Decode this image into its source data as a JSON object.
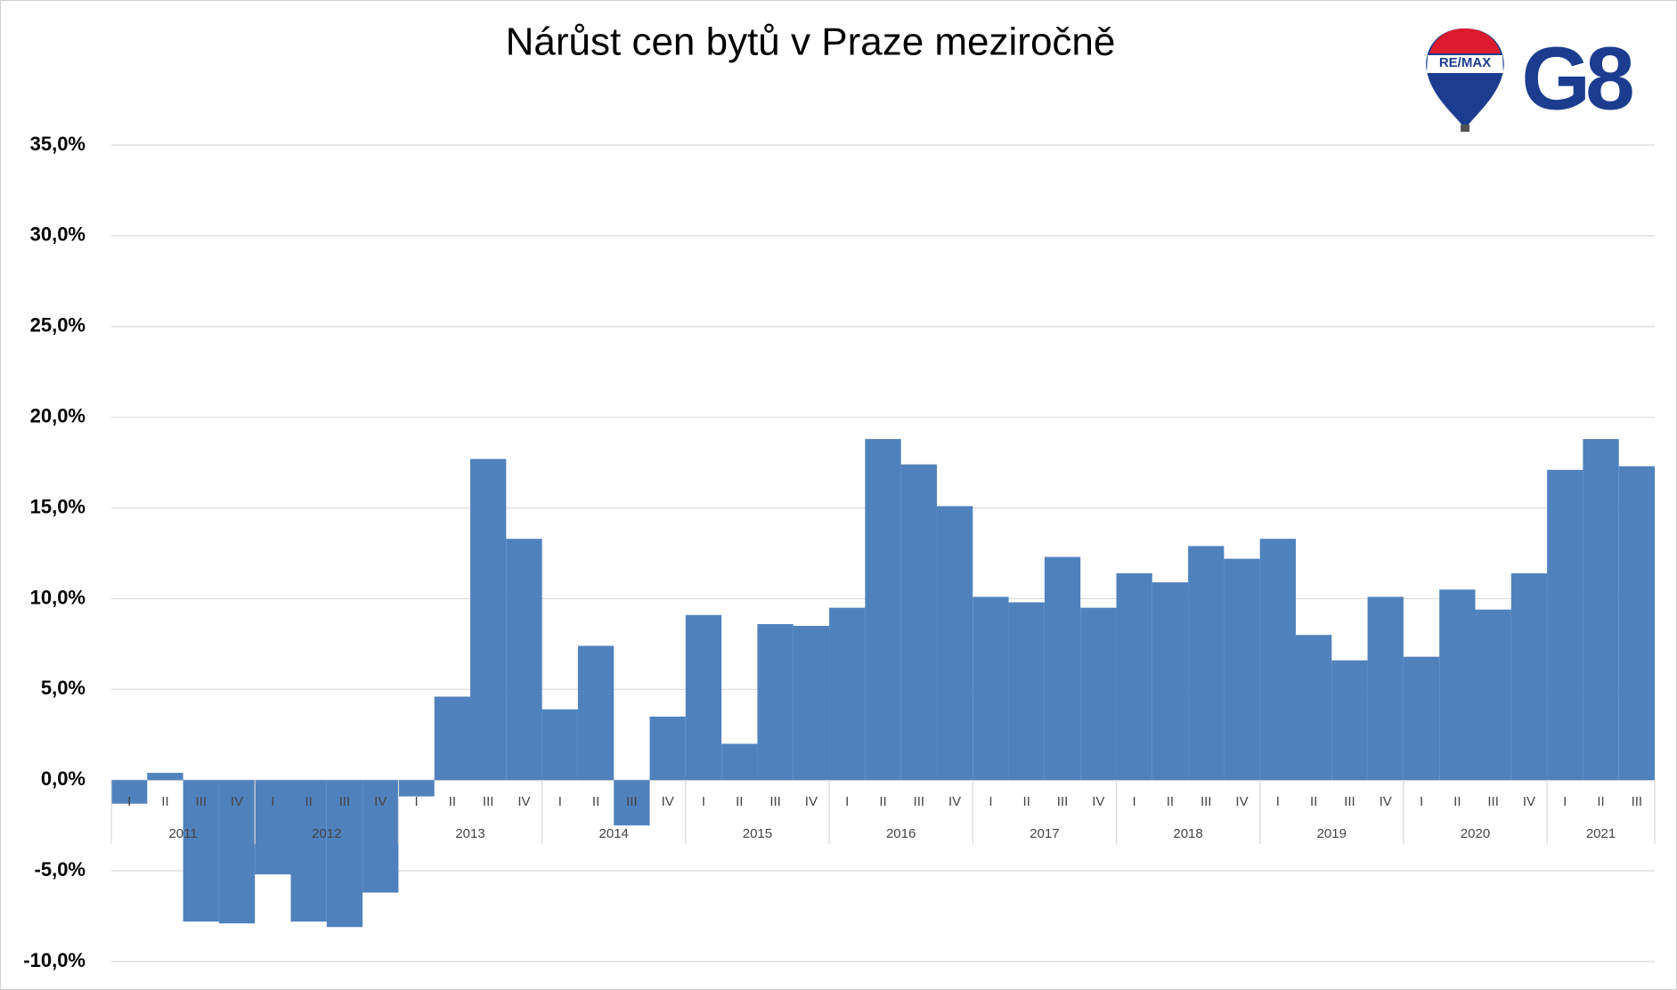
{
  "chart_data": {
    "type": "bar",
    "title": "Nárůst cen bytů v Praze meziročně",
    "categories": [
      "I",
      "II",
      "III",
      "IV",
      "I",
      "II",
      "III",
      "IV",
      "I",
      "II",
      "III",
      "IV",
      "I",
      "II",
      "III",
      "IV",
      "I",
      "II",
      "III",
      "IV",
      "I",
      "II",
      "III",
      "IV",
      "I",
      "II",
      "III",
      "IV",
      "I",
      "II",
      "III",
      "IV",
      "I",
      "II",
      "III",
      "IV",
      "I",
      "II",
      "III",
      "IV",
      "I",
      "II",
      "III"
    ],
    "years": [
      "2011",
      "2012",
      "2013",
      "2014",
      "2015",
      "2016",
      "2017",
      "2018",
      "2019",
      "2020",
      "2021"
    ],
    "values": [
      -1.3,
      0.4,
      -7.8,
      -7.9,
      -5.2,
      -7.8,
      -8.1,
      -6.2,
      -0.9,
      4.6,
      17.7,
      13.3,
      3.9,
      7.4,
      -2.5,
      3.5,
      9.1,
      2.0,
      8.6,
      8.5,
      9.5,
      18.8,
      17.4,
      15.1,
      10.1,
      9.8,
      12.3,
      9.5,
      11.4,
      10.9,
      12.9,
      12.2,
      13.3,
      8.0,
      6.6,
      10.1,
      6.8,
      10.5,
      9.4,
      11.4,
      17.1,
      18.8,
      17.3
    ],
    "color": "#4f81bd",
    "ylim": [
      -10,
      35
    ],
    "yticks": [
      {
        "value": -10,
        "label": "-10,0%"
      },
      {
        "value": -5,
        "label": "-5,0%"
      },
      {
        "value": 0,
        "label": "0,0%"
      },
      {
        "value": 5,
        "label": "5,0%"
      },
      {
        "value": 10,
        "label": "10,0%"
      },
      {
        "value": 15,
        "label": "15,0%"
      },
      {
        "value": 20,
        "label": "20,0%"
      },
      {
        "value": 25,
        "label": "25,0%"
      },
      {
        "value": 30,
        "label": "30,0%"
      },
      {
        "value": 35,
        "label": "35,0%"
      }
    ],
    "grid": true
  },
  "logo": {
    "brand": "RE/MAX",
    "office": "G8"
  }
}
